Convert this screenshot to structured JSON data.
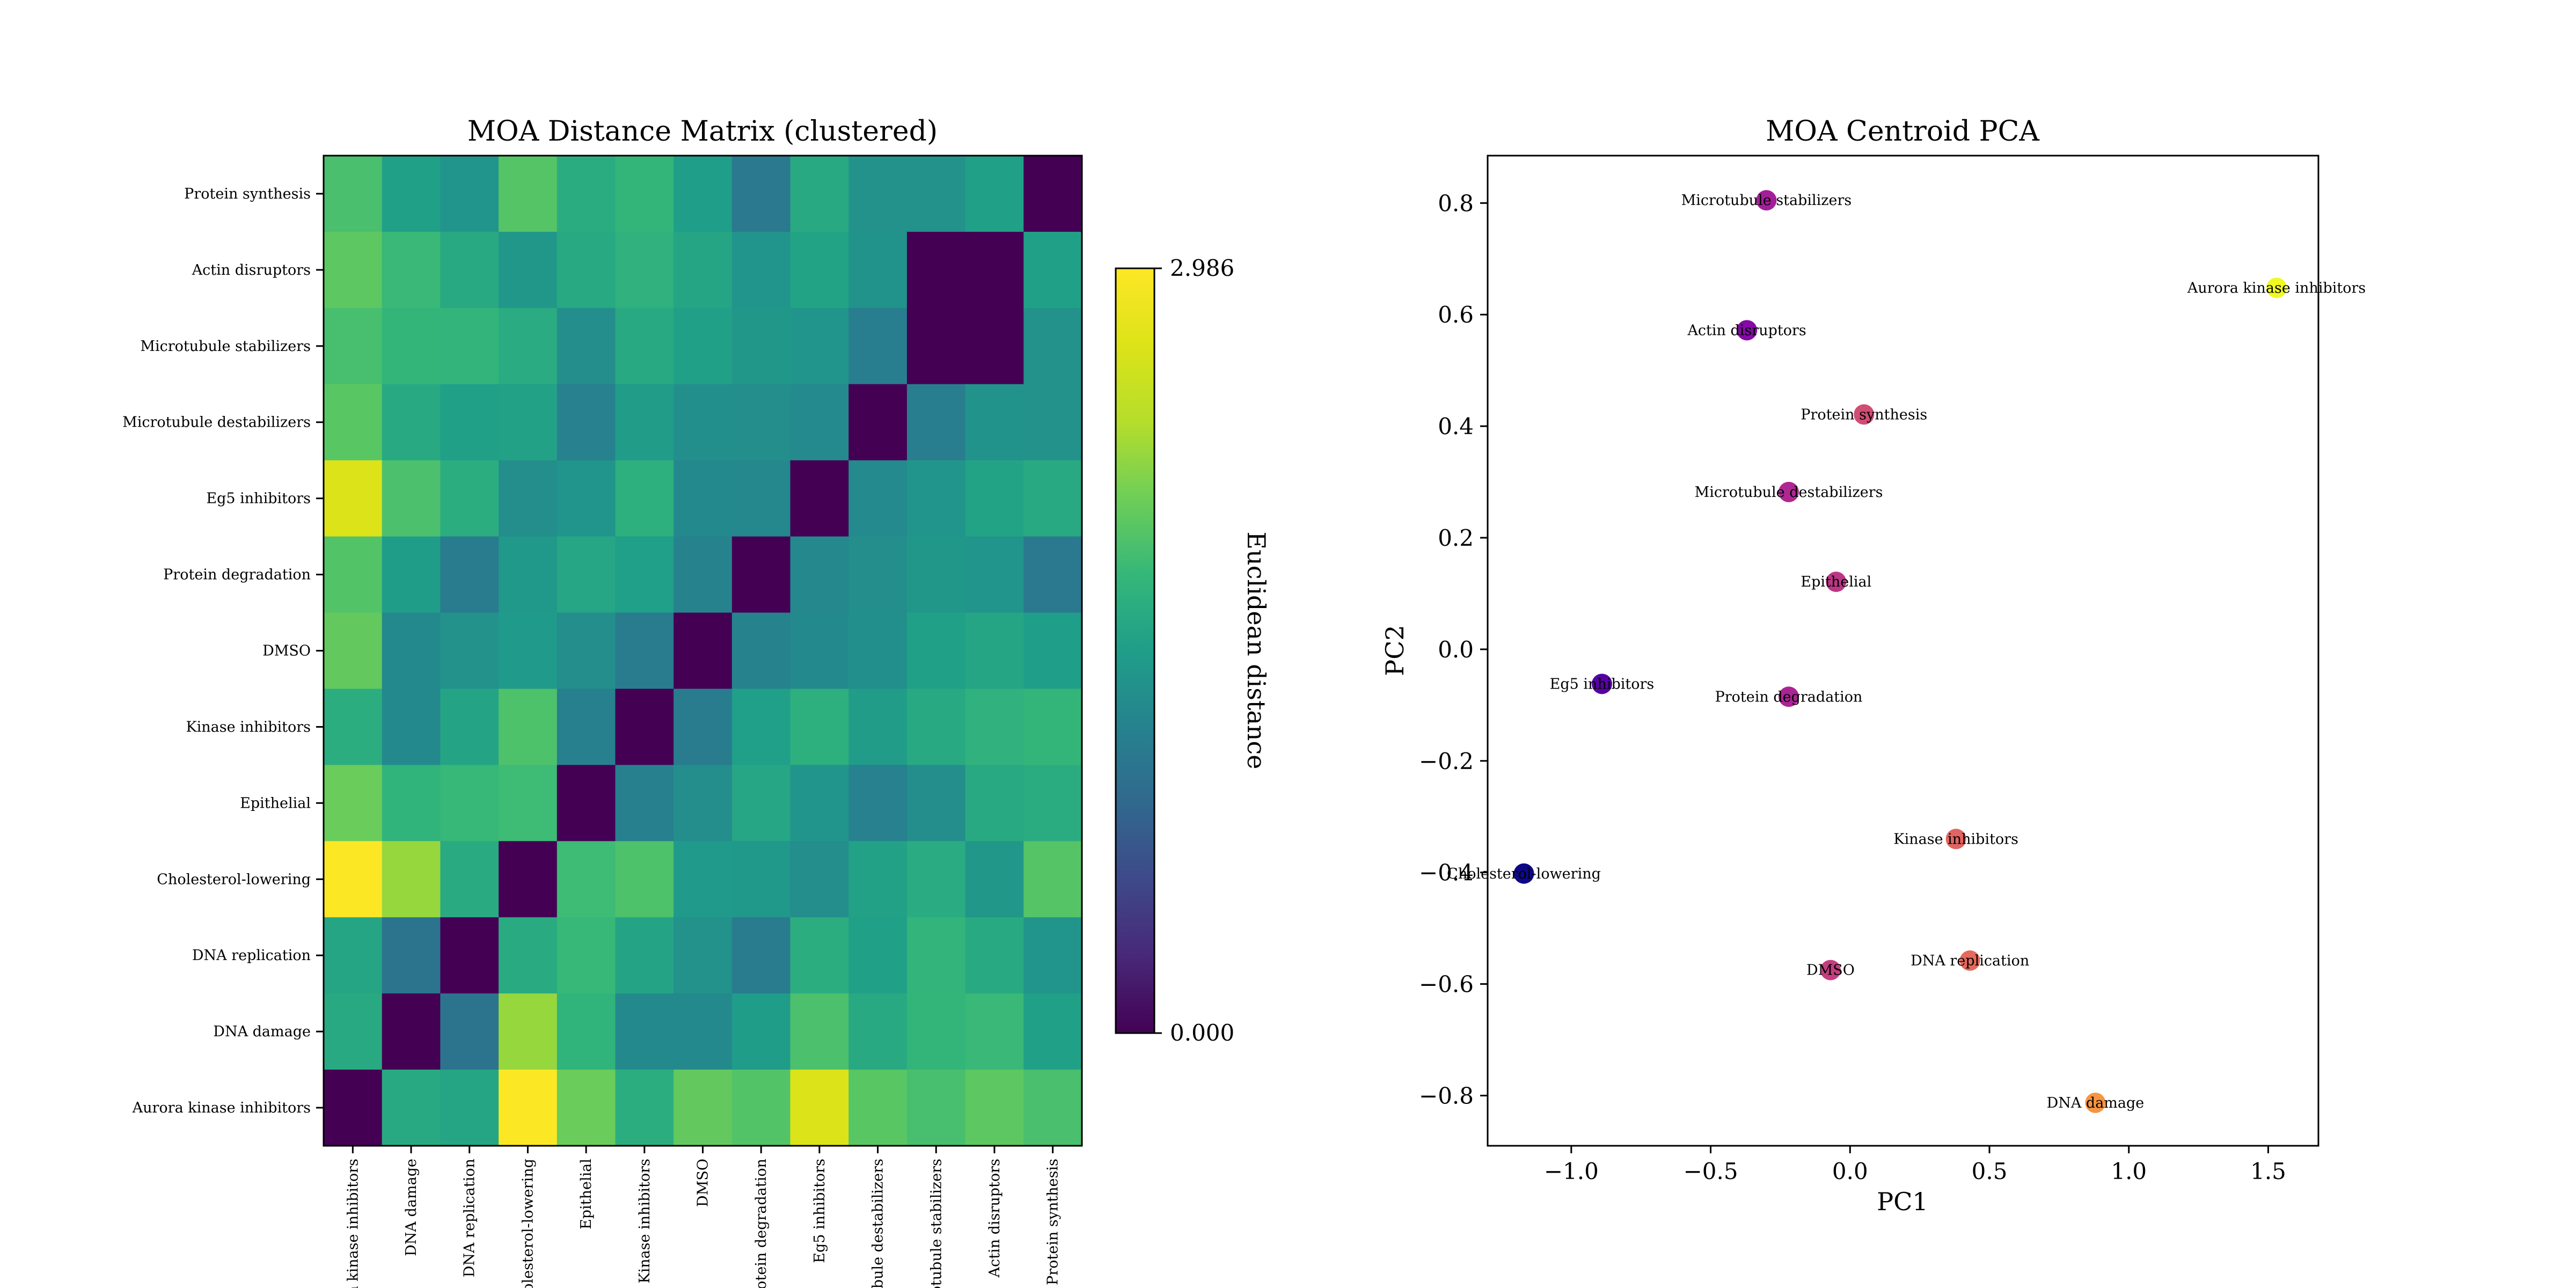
{
  "chart_data": [
    {
      "type": "heatmap",
      "title": "MOA Distance Matrix (clustered)",
      "labels": [
        "Aurora kinase inhibitors",
        "DNA damage",
        "DNA replication",
        "Cholesterol-lowering",
        "Epithelial",
        "Kinase inhibitors",
        "DMSO",
        "Protein degradation",
        "Eg5 inhibitors",
        "Microtubule destabilizers",
        "Microtubule stabilizers",
        "Actin disruptors",
        "Protein synthesis"
      ],
      "row_order_top_to_bottom": [
        "Protein synthesis",
        "Actin disruptors",
        "Microtubule stabilizers",
        "Microtubule destabilizers",
        "Eg5 inhibitors",
        "Protein degradation",
        "DMSO",
        "Kinase inhibitors",
        "Epithelial",
        "Cholesterol-lowering",
        "DNA replication",
        "DNA damage",
        "Aurora kinase inhibitors"
      ],
      "colormap": "viridis",
      "colorbar": {
        "label": "Euclidean distance",
        "min": 0.0,
        "max": 2.986,
        "min_label": "0.000",
        "max_label": "2.986"
      },
      "matrix": [
        [
          0.0,
          1.63,
          1.58,
          2.98,
          2.07,
          1.67,
          2.03,
          1.95,
          2.68,
          1.98,
          1.89,
          2.0,
          1.9
        ],
        [
          1.63,
          0.0,
          1.03,
          2.26,
          1.74,
          1.27,
          1.27,
          1.48,
          1.91,
          1.62,
          1.77,
          1.81,
          1.52
        ],
        [
          1.58,
          1.03,
          0.0,
          1.64,
          1.8,
          1.57,
          1.37,
          1.13,
          1.67,
          1.52,
          1.75,
          1.62,
          1.4
        ],
        [
          2.98,
          2.26,
          1.64,
          0.0,
          1.84,
          1.92,
          1.45,
          1.43,
          1.32,
          1.53,
          1.65,
          1.42,
          1.96
        ],
        [
          2.07,
          1.74,
          1.8,
          1.84,
          0.0,
          1.17,
          1.32,
          1.59,
          1.4,
          1.18,
          1.32,
          1.63,
          1.66
        ],
        [
          1.67,
          1.27,
          1.57,
          1.92,
          1.17,
          0.0,
          1.12,
          1.5,
          1.7,
          1.47,
          1.63,
          1.72,
          1.77
        ],
        [
          2.03,
          1.27,
          1.37,
          1.45,
          1.32,
          1.12,
          0.0,
          1.2,
          1.27,
          1.33,
          1.52,
          1.58,
          1.49
        ],
        [
          1.95,
          1.48,
          1.13,
          1.43,
          1.59,
          1.5,
          1.2,
          0.0,
          1.26,
          1.32,
          1.42,
          1.39,
          1.09
        ],
        [
          2.68,
          1.91,
          1.67,
          1.32,
          1.4,
          1.7,
          1.27,
          1.26,
          0.0,
          1.28,
          1.4,
          1.55,
          1.62
        ],
        [
          1.98,
          1.62,
          1.52,
          1.53,
          1.18,
          1.47,
          1.33,
          1.32,
          1.28,
          0.0,
          1.15,
          1.38,
          1.37
        ],
        [
          1.89,
          1.77,
          1.75,
          1.65,
          1.32,
          1.63,
          1.52,
          1.42,
          1.4,
          1.15,
          0.0,
          0.0,
          1.36
        ],
        [
          2.0,
          1.81,
          1.62,
          1.42,
          1.63,
          1.72,
          1.58,
          1.39,
          1.55,
          1.38,
          0.0,
          0.0,
          1.52
        ],
        [
          1.9,
          1.52,
          1.4,
          1.96,
          1.66,
          1.77,
          1.49,
          1.09,
          1.62,
          1.37,
          1.36,
          1.52,
          0.0
        ]
      ]
    },
    {
      "type": "scatter",
      "title": "MOA Centroid PCA",
      "xlabel": "PC1",
      "ylabel": "PC2",
      "xlim": [
        -1.3,
        1.68
      ],
      "ylim": [
        -0.89,
        0.885
      ],
      "xticks": [
        -1.0,
        -0.5,
        0.0,
        0.5,
        1.0,
        1.5
      ],
      "yticks": [
        -0.8,
        -0.6,
        -0.4,
        -0.2,
        0.0,
        0.2,
        0.4,
        0.6,
        0.8
      ],
      "xtick_labels": [
        "−1.0",
        "−0.5",
        "0.0",
        "0.5",
        "1.0",
        "1.5"
      ],
      "ytick_labels": [
        "−0.8",
        "−0.6",
        "−0.4",
        "−0.2",
        "0.0",
        "0.2",
        "0.4",
        "0.6",
        "0.8"
      ],
      "colormap": "plasma",
      "points": [
        {
          "label": "Microtubule stabilizers",
          "x": -0.3,
          "y": 0.805,
          "c": 0.36
        },
        {
          "label": "Aurora kinase inhibitors",
          "x": 1.53,
          "y": 0.648,
          "c": 1.0
        },
        {
          "label": "Actin disruptors",
          "x": -0.37,
          "y": 0.572,
          "c": 0.27
        },
        {
          "label": "Protein synthesis",
          "x": 0.05,
          "y": 0.421,
          "c": 0.52
        },
        {
          "label": "Microtubule destabilizers",
          "x": -0.22,
          "y": 0.282,
          "c": 0.39
        },
        {
          "label": "Epithelial",
          "x": -0.05,
          "y": 0.121,
          "c": 0.44
        },
        {
          "label": "Eg5 inhibitors",
          "x": -0.89,
          "y": -0.062,
          "c": 0.15
        },
        {
          "label": "Protein degradation",
          "x": -0.22,
          "y": -0.085,
          "c": 0.38
        },
        {
          "label": "Kinase inhibitors",
          "x": 0.38,
          "y": -0.34,
          "c": 0.6
        },
        {
          "label": "Cholesterol-lowering",
          "x": -1.17,
          "y": -0.402,
          "c": 0.0
        },
        {
          "label": "DMSO",
          "x": -0.07,
          "y": -0.575,
          "c": 0.47
        },
        {
          "label": "DNA replication",
          "x": 0.43,
          "y": -0.558,
          "c": 0.62
        },
        {
          "label": "DNA damage",
          "x": 0.88,
          "y": -0.813,
          "c": 0.75
        }
      ]
    }
  ]
}
